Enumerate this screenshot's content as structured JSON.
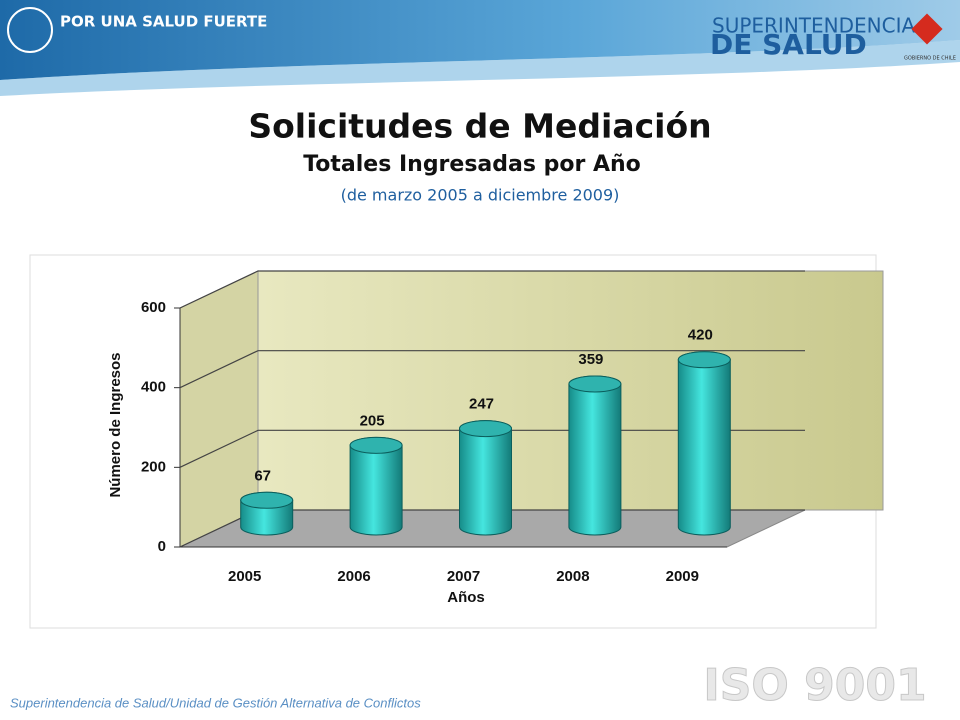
{
  "header": {
    "slogan": "POR UNA SALUD FUERTE",
    "org_line1": "SUPERINTENDENCIA",
    "org_line2": "DE SALUD",
    "gov": "GOBIERNO DE CHILE"
  },
  "chart_data": {
    "type": "bar",
    "title": "Solicitudes de Mediación",
    "subtitle": "Totales Ingresadas por Año",
    "annotation": "(de marzo 2005 a diciembre 2009)",
    "x_label": "Años",
    "y_label": "Número de Ingresos",
    "categories": [
      "2005",
      "2006",
      "2007",
      "2008",
      "2009"
    ],
    "values": [
      67,
      205,
      247,
      359,
      420
    ],
    "color": "#2fc9c4",
    "ylim": [
      0,
      600
    ],
    "yticks": [
      0,
      200,
      400,
      600
    ],
    "grid": true
  },
  "footer": {
    "text": "Superintendencia de Salud/Unidad de Gestión Alternativa de Conflictos",
    "badge": "ISO 9001"
  }
}
